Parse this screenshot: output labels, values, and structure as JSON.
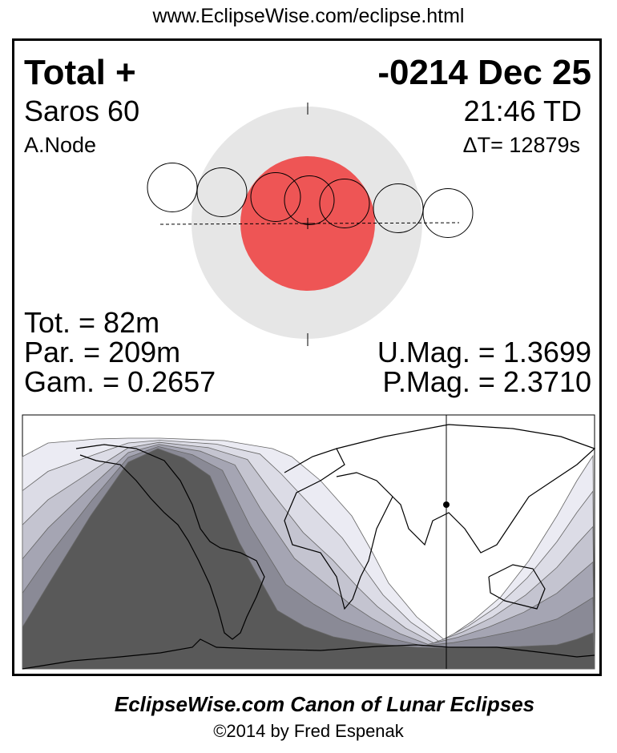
{
  "header_url": "www.EclipseWise.com/eclipse.html",
  "eclipse": {
    "type": "Total  +",
    "date": "-0214 Dec 25",
    "saros": "Saros  60",
    "time": "21:46 TD",
    "node": "A.Node",
    "delta_t": "ΔT=  12879s",
    "totality": "Tot. =  82m",
    "partial": "Par. = 209m",
    "gamma": "Gam. = 0.2657",
    "umbral_mag": "U.Mag. = 1.3699",
    "penumbral_mag": "P.Mag. = 2.3710"
  },
  "colors": {
    "penumbra": "#e6e6e6",
    "umbra": "#ee5555",
    "map_bands": [
      "#ebebf3",
      "#dcdce6",
      "#c4c4d0",
      "#a5a5b3",
      "#8a8a96",
      "#595959"
    ]
  },
  "footer": {
    "title": "EclipseWise.com Canon of Lunar Eclipses",
    "copyright": "©2014 by Fred Espenak"
  }
}
